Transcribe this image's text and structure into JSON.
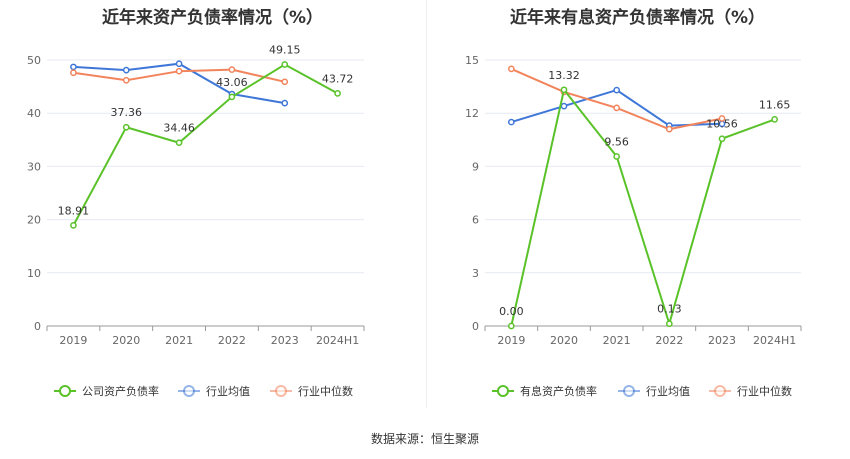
{
  "source_label": "数据来源：恒生聚源",
  "chart_data": [
    {
      "type": "line",
      "title": "近年来资产负债率情况（%）",
      "categories": [
        "2019",
        "2020",
        "2021",
        "2022",
        "2023",
        "2024H1"
      ],
      "ylim": [
        0,
        50
      ],
      "yticks": [
        0,
        10,
        20,
        30,
        40,
        50
      ],
      "grid": true,
      "legend_position": "bottom",
      "series": [
        {
          "name": "公司资产负债率",
          "color": "#5ac229",
          "values": [
            18.91,
            37.36,
            34.46,
            43.06,
            49.15,
            43.72
          ],
          "labels": [
            "18.91",
            "37.36",
            "34.46",
            "43.06",
            "49.15",
            "43.72"
          ]
        },
        {
          "name": "行业均值",
          "color": "#3f77d8",
          "values": [
            48.7,
            48.1,
            49.3,
            43.6,
            41.9,
            null
          ]
        },
        {
          "name": "行业中位数",
          "color": "#f2845c",
          "values": [
            47.6,
            46.2,
            47.9,
            48.2,
            45.9,
            null
          ]
        }
      ]
    },
    {
      "type": "line",
      "title": "近年来有息资产负债率情况（%）",
      "categories": [
        "2019",
        "2020",
        "2021",
        "2022",
        "2023",
        "2024H1"
      ],
      "ylim": [
        0,
        15
      ],
      "yticks": [
        0,
        3,
        6,
        9,
        12,
        15
      ],
      "grid": true,
      "legend_position": "bottom",
      "series": [
        {
          "name": "有息资产负债率",
          "color": "#5ac229",
          "values": [
            0.0,
            13.32,
            9.56,
            0.13,
            10.56,
            11.65
          ],
          "labels": [
            "0.00",
            "13.32",
            "9.56",
            "0.13",
            "10.56",
            "11.65"
          ]
        },
        {
          "name": "行业均值",
          "color": "#3f77d8",
          "values": [
            11.5,
            12.4,
            13.3,
            11.3,
            11.4,
            null
          ]
        },
        {
          "name": "行业中位数",
          "color": "#f2845c",
          "values": [
            14.5,
            13.2,
            12.3,
            11.1,
            11.7,
            null
          ]
        }
      ]
    }
  ]
}
